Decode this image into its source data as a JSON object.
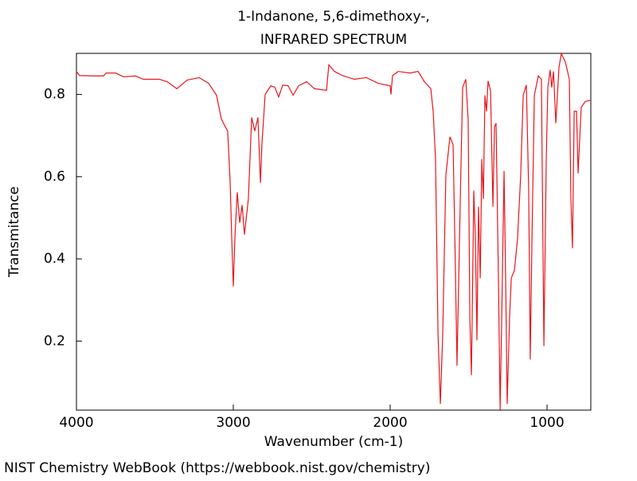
{
  "chart_data": {
    "type": "line",
    "title": "1-Indanone, 5,6-dimethoxy-,",
    "subtitle": "INFRARED SPECTRUM",
    "x_label": "Wavenumber (cm-1)",
    "y_label": "Transmitance",
    "color": "#e8151b",
    "xlim": [
      4000,
      721
    ],
    "ylim": [
      0.032,
      0.9
    ],
    "xticks": [
      4000,
      3000,
      2000,
      1000
    ],
    "yticks": [
      0.2,
      0.4,
      0.6,
      0.8
    ],
    "x": [
      4000,
      3980,
      3878,
      3827,
      3812,
      3750,
      3700,
      3624,
      3574,
      3472,
      3421,
      3360,
      3294,
      3218,
      3157,
      3107,
      3076,
      3056,
      3036,
      3020,
      3010,
      3000,
      2990,
      2975,
      2959,
      2944,
      2929,
      2904,
      2883,
      2863,
      2843,
      2827,
      2817,
      2797,
      2761,
      2736,
      2711,
      2685,
      2650,
      2619,
      2584,
      2533,
      2482,
      2406,
      2391,
      2355,
      2305,
      2228,
      2152,
      2076,
      2000,
      1995,
      1985,
      1949,
      1873,
      1822,
      1782,
      1741,
      1726,
      1711,
      1695,
      1680,
      1665,
      1645,
      1619,
      1599,
      1584,
      1574,
      1553,
      1538,
      1518,
      1503,
      1492,
      1482,
      1467,
      1457,
      1447,
      1437,
      1426,
      1416,
      1406,
      1396,
      1386,
      1376,
      1360,
      1345,
      1335,
      1325,
      1310,
      1299,
      1289,
      1274,
      1264,
      1254,
      1239,
      1228,
      1208,
      1188,
      1168,
      1152,
      1132,
      1117,
      1107,
      1096,
      1081,
      1056,
      1036,
      1020,
      1005,
      995,
      980,
      970,
      959,
      944,
      924,
      909,
      883,
      858,
      848,
      838,
      827,
      812,
      802,
      782,
      756,
      721
    ],
    "values": [
      0.856,
      0.846,
      0.845,
      0.845,
      0.852,
      0.852,
      0.843,
      0.845,
      0.837,
      0.837,
      0.831,
      0.814,
      0.835,
      0.841,
      0.827,
      0.798,
      0.74,
      0.725,
      0.711,
      0.585,
      0.45,
      0.333,
      0.45,
      0.562,
      0.488,
      0.531,
      0.459,
      0.546,
      0.744,
      0.711,
      0.744,
      0.585,
      0.682,
      0.8,
      0.821,
      0.818,
      0.794,
      0.823,
      0.821,
      0.798,
      0.821,
      0.831,
      0.814,
      0.81,
      0.872,
      0.856,
      0.846,
      0.837,
      0.841,
      0.827,
      0.821,
      0.8,
      0.846,
      0.856,
      0.852,
      0.856,
      0.831,
      0.814,
      0.759,
      0.643,
      0.217,
      0.047,
      0.217,
      0.604,
      0.697,
      0.678,
      0.372,
      0.14,
      0.546,
      0.817,
      0.837,
      0.74,
      0.256,
      0.117,
      0.566,
      0.45,
      0.202,
      0.527,
      0.353,
      0.643,
      0.546,
      0.798,
      0.759,
      0.833,
      0.808,
      0.527,
      0.721,
      0.73,
      0.353,
      0.033,
      0.256,
      0.614,
      0.353,
      0.047,
      0.256,
      0.353,
      0.372,
      0.45,
      0.604,
      0.798,
      0.823,
      0.566,
      0.155,
      0.45,
      0.798,
      0.845,
      0.837,
      0.188,
      0.643,
      0.817,
      0.86,
      0.817,
      0.856,
      0.73,
      0.866,
      0.899,
      0.879,
      0.837,
      0.546,
      0.426,
      0.759,
      0.759,
      0.608,
      0.769,
      0.783,
      0.786
    ]
  },
  "footer": "NIST Chemistry WebBook (https://webbook.nist.gov/chemistry)"
}
